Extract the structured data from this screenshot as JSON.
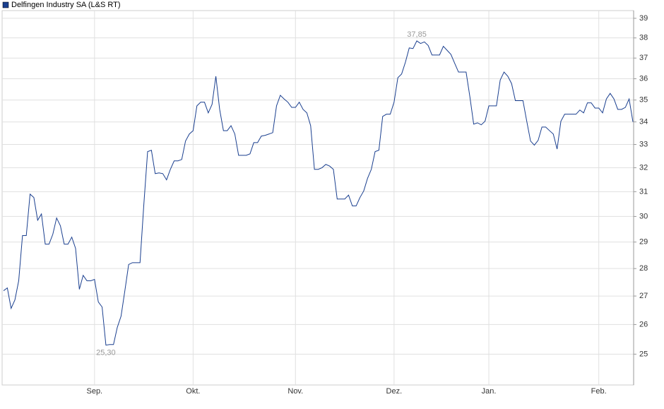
{
  "chart_data": {
    "type": "line",
    "categories": [
      null,
      null,
      null,
      null,
      null,
      null,
      null,
      null,
      null,
      null,
      null,
      null,
      null,
      null,
      null,
      null,
      null,
      null,
      null,
      null,
      null,
      null,
      null,
      null,
      "Sep.",
      null,
      null,
      null,
      null,
      null,
      null,
      null,
      null,
      null,
      null,
      null,
      null,
      null,
      null,
      null,
      null,
      null,
      null,
      null,
      null,
      null,
      null,
      null,
      null,
      null,
      "Okt.",
      null,
      null,
      null,
      null,
      null,
      null,
      null,
      null,
      null,
      null,
      null,
      null,
      null,
      null,
      null,
      null,
      null,
      null,
      null,
      null,
      null,
      null,
      null,
      null,
      null,
      null,
      "Nov.",
      null,
      null,
      null,
      null,
      null,
      null,
      null,
      null,
      null,
      null,
      null,
      null,
      null,
      null,
      null,
      null,
      null,
      null,
      null,
      null,
      null,
      null,
      null,
      null,
      null,
      "Dez.",
      null,
      null,
      null,
      null,
      null,
      null,
      null,
      null,
      null,
      null,
      null,
      null,
      null,
      null,
      null,
      null,
      null,
      null,
      null,
      null,
      null,
      null,
      null,
      null,
      "Jan.",
      null,
      null,
      null,
      null,
      null,
      null,
      null,
      null,
      null,
      null,
      null,
      null,
      null,
      null,
      null,
      null,
      null,
      null,
      null,
      null,
      null,
      null,
      null,
      null,
      null,
      null,
      null,
      null,
      "Feb.",
      null,
      null,
      null,
      null,
      null,
      null,
      null,
      null,
      null
    ],
    "series": [
      {
        "name": "Delfingen Industry SA (L&S RT)",
        "color": "#1a3f8f",
        "values": [
          27.19,
          27.29,
          26.56,
          26.86,
          27.55,
          29.25,
          29.25,
          30.9,
          30.76,
          29.85,
          30.1,
          28.92,
          28.92,
          29.3,
          29.94,
          29.63,
          28.92,
          28.92,
          29.19,
          28.76,
          27.24,
          27.75,
          27.55,
          27.55,
          27.6,
          26.79,
          26.61,
          25.3,
          25.32,
          25.32,
          25.9,
          26.29,
          27.19,
          28.15,
          28.22,
          28.22,
          28.22,
          30.47,
          32.69,
          32.75,
          31.75,
          31.78,
          31.75,
          31.49,
          31.93,
          32.29,
          32.29,
          32.35,
          33.15,
          33.46,
          33.61,
          34.73,
          34.9,
          34.9,
          34.41,
          34.8,
          36.12,
          34.57,
          33.61,
          33.61,
          33.83,
          33.46,
          32.53,
          32.53,
          32.53,
          32.59,
          33.08,
          33.08,
          33.37,
          33.4,
          33.46,
          33.52,
          34.73,
          35.22,
          35.05,
          34.9,
          34.66,
          34.66,
          34.9,
          34.57,
          34.41,
          33.83,
          31.93,
          31.93,
          32.0,
          32.14,
          32.07,
          31.93,
          30.7,
          30.7,
          30.7,
          30.86,
          30.42,
          30.42,
          30.76,
          31.03,
          31.55,
          31.93,
          32.69,
          32.75,
          34.25,
          34.35,
          34.35,
          34.9,
          36.05,
          36.23,
          36.8,
          37.5,
          37.47,
          37.85,
          37.72,
          37.8,
          37.62,
          37.15,
          37.15,
          37.15,
          37.58,
          37.38,
          37.18,
          36.74,
          36.32,
          36.32,
          36.32,
          35.15,
          33.9,
          33.96,
          33.87,
          34.03,
          34.73,
          34.73,
          34.73,
          35.94,
          36.32,
          36.12,
          35.77,
          34.97,
          34.97,
          34.97,
          34.03,
          33.15,
          32.97,
          33.18,
          33.77,
          33.77,
          33.61,
          33.46,
          32.8,
          34.03,
          34.35,
          34.35,
          34.35,
          34.35,
          34.54,
          34.41,
          34.87,
          34.87,
          34.63,
          34.63,
          34.41,
          35.05,
          35.31,
          35.05,
          34.57,
          34.57,
          34.66,
          35.05,
          34.0
        ],
        "value_labels": [
          null,
          null,
          null,
          null,
          null,
          null,
          null,
          null,
          null,
          null,
          null,
          null,
          null,
          null,
          null,
          null,
          null,
          null,
          null,
          null,
          null,
          null,
          null,
          null,
          null,
          null,
          null,
          "25,30",
          null,
          null,
          null,
          null,
          null,
          null,
          null,
          null,
          null,
          null,
          null,
          null,
          null,
          null,
          null,
          null,
          null,
          null,
          null,
          null,
          null,
          null,
          null,
          null,
          null,
          null,
          null,
          null,
          null,
          null,
          null,
          null,
          null,
          null,
          null,
          null,
          null,
          null,
          null,
          null,
          null,
          null,
          null,
          null,
          null,
          null,
          null,
          null,
          null,
          null,
          null,
          null,
          null,
          null,
          null,
          null,
          null,
          null,
          null,
          null,
          null,
          null,
          null,
          null,
          null,
          null,
          null,
          null,
          null,
          null,
          null,
          null,
          null,
          null,
          null,
          null,
          null,
          null,
          null,
          null,
          null,
          "37,85",
          null,
          null,
          null,
          null,
          null,
          null,
          null,
          null,
          null,
          null,
          null,
          null,
          null,
          null,
          null,
          null,
          null,
          null,
          null,
          null,
          null,
          null,
          null,
          null,
          null,
          null,
          null,
          null,
          null,
          null,
          null,
          null,
          null,
          null,
          null,
          null,
          null,
          null,
          null,
          null,
          null,
          null,
          null,
          null,
          null,
          null,
          null,
          null,
          null,
          null,
          null,
          null,
          null,
          null,
          null,
          null,
          null
        ]
      }
    ],
    "ylim": [
      24.0,
      39.4
    ],
    "yticks": [
      25,
      26,
      27,
      28,
      29,
      30,
      31,
      32,
      33,
      34,
      35,
      36,
      37,
      38,
      39
    ],
    "log_scale": true,
    "grid": true,
    "legend": "top-left"
  }
}
